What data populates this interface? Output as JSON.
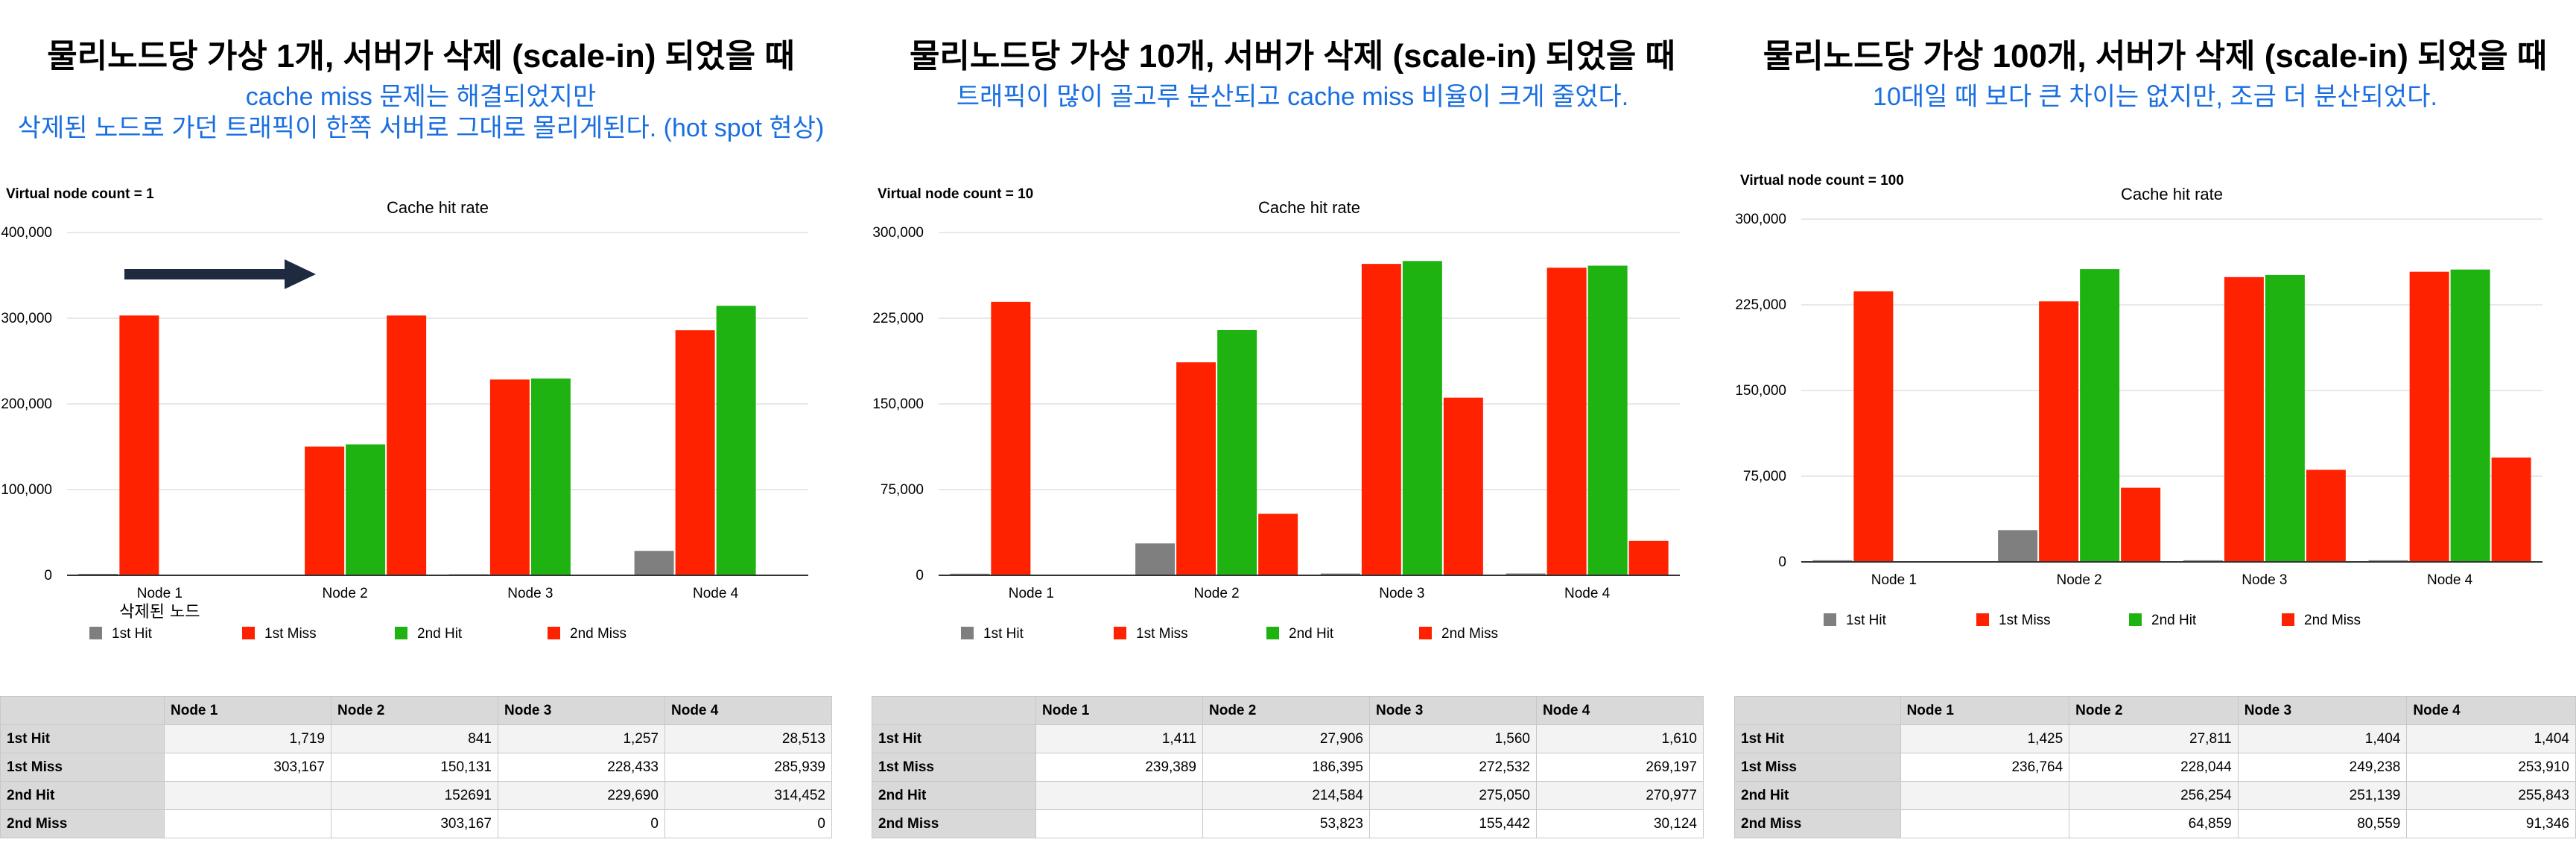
{
  "panels": [
    {
      "title": "물리노드당 가상 1개, 서버가 삭제 (scale-in) 되었을 때",
      "subtitles": [
        "cache miss 문제는 해결되었지만",
        "삭제된 노드로 가던 트래픽이 한쪽 서버로 그대로 몰리게된다. (hot spot 현상)"
      ],
      "annotation": "삭제된 노드",
      "table": {
        "headers": [
          "",
          "Node 1",
          "Node 2",
          "Node 3",
          "Node 4"
        ],
        "rows": [
          [
            "1st Hit",
            "1,719",
            "841",
            "1,257",
            "28,513"
          ],
          [
            "1st Miss",
            "303,167",
            "150,131",
            "228,433",
            "285,939"
          ],
          [
            "2nd Hit",
            "",
            "152691",
            "229,690",
            "314,452"
          ],
          [
            "2nd Miss",
            "",
            "303,167",
            "0",
            "0"
          ]
        ]
      }
    },
    {
      "title": "물리노드당 가상 10개, 서버가 삭제 (scale-in) 되었을 때",
      "subtitles": [
        "트래픽이 많이 골고루 분산되고 cache miss 비율이 크게 줄었다."
      ],
      "annotation": "",
      "table": {
        "headers": [
          "",
          "Node 1",
          "Node 2",
          "Node 3",
          "Node 4"
        ],
        "rows": [
          [
            "1st Hit",
            "1,411",
            "27,906",
            "1,560",
            "1,610"
          ],
          [
            "1st Miss",
            "239,389",
            "186,395",
            "272,532",
            "269,197"
          ],
          [
            "2nd Hit",
            "",
            "214,584",
            "275,050",
            "270,977"
          ],
          [
            "2nd Miss",
            "",
            "53,823",
            "155,442",
            "30,124"
          ]
        ]
      }
    },
    {
      "title": "물리노드당 가상 100개, 서버가 삭제 (scale-in) 되었을 때",
      "subtitles": [
        "10대일 때 보다 큰 차이는 없지만, 조금 더 분산되었다."
      ],
      "annotation": "",
      "table": {
        "headers": [
          "",
          "Node 1",
          "Node 2",
          "Node 3",
          "Node 4"
        ],
        "rows": [
          [
            "1st Hit",
            "1,425",
            "27,811",
            "1,404",
            "1,404"
          ],
          [
            "1st Miss",
            "236,764",
            "228,044",
            "249,238",
            "253,910"
          ],
          [
            "2nd Hit",
            "",
            "256,254",
            "251,139",
            "255,843"
          ],
          [
            "2nd Miss",
            "",
            "64,859",
            "80,559",
            "91,346"
          ]
        ]
      }
    }
  ],
  "chart_data": [
    {
      "type": "bar",
      "title": "Cache hit rate",
      "corner_label": "Virtual node count = 1",
      "categories": [
        "Node 1",
        "Node 2",
        "Node 3",
        "Node 4"
      ],
      "ylim": [
        0,
        400000
      ],
      "yticks": [
        0,
        100000,
        200000,
        300000,
        400000
      ],
      "ytick_labels": [
        "0",
        "100,000",
        "200,000",
        "300,000",
        "400,000"
      ],
      "grid": true,
      "legend_position": "bottom",
      "series": [
        {
          "name": "1st Hit",
          "color": "#7f7f7f",
          "values": [
            1719,
            841,
            1257,
            28513
          ]
        },
        {
          "name": "1st Miss",
          "color": "#ff2200",
          "values": [
            303167,
            150131,
            228433,
            285939
          ]
        },
        {
          "name": "2nd Hit",
          "color": "#1fb312",
          "values": [
            null,
            152691,
            229690,
            314452
          ]
        },
        {
          "name": "2nd Miss",
          "color": "#ff2200",
          "values": [
            null,
            303167,
            0,
            0
          ]
        }
      ]
    },
    {
      "type": "bar",
      "title": "Cache hit rate",
      "corner_label": "Virtual node count = 10",
      "categories": [
        "Node 1",
        "Node 2",
        "Node 3",
        "Node 4"
      ],
      "ylim": [
        0,
        300000
      ],
      "yticks": [
        0,
        75000,
        150000,
        225000,
        300000
      ],
      "ytick_labels": [
        "0",
        "75,000",
        "150,000",
        "225,000",
        "300,000"
      ],
      "grid": true,
      "legend_position": "bottom",
      "series": [
        {
          "name": "1st Hit",
          "color": "#7f7f7f",
          "values": [
            1411,
            27906,
            1560,
            1610
          ]
        },
        {
          "name": "1st Miss",
          "color": "#ff2200",
          "values": [
            239389,
            186395,
            272532,
            269197
          ]
        },
        {
          "name": "2nd Hit",
          "color": "#1fb312",
          "values": [
            null,
            214584,
            275050,
            270977
          ]
        },
        {
          "name": "2nd Miss",
          "color": "#ff2200",
          "values": [
            null,
            53823,
            155442,
            30124
          ]
        }
      ]
    },
    {
      "type": "bar",
      "title": "Cache hit rate",
      "corner_label": "Virtual node count = 100",
      "categories": [
        "Node 1",
        "Node 2",
        "Node 3",
        "Node 4"
      ],
      "ylim": [
        0,
        300000
      ],
      "yticks": [
        0,
        75000,
        150000,
        225000,
        300000
      ],
      "ytick_labels": [
        "0",
        "75,000",
        "150,000",
        "225,000",
        "300,000"
      ],
      "grid": true,
      "legend_position": "bottom",
      "series": [
        {
          "name": "1st Hit",
          "color": "#7f7f7f",
          "values": [
            1425,
            27811,
            1404,
            1404
          ]
        },
        {
          "name": "1st Miss",
          "color": "#ff2200",
          "values": [
            236764,
            228044,
            249238,
            253910
          ]
        },
        {
          "name": "2nd Hit",
          "color": "#1fb312",
          "values": [
            null,
            256254,
            251139,
            255843
          ]
        },
        {
          "name": "2nd Miss",
          "color": "#ff2200",
          "values": [
            null,
            64859,
            80559,
            91346
          ]
        }
      ]
    }
  ]
}
